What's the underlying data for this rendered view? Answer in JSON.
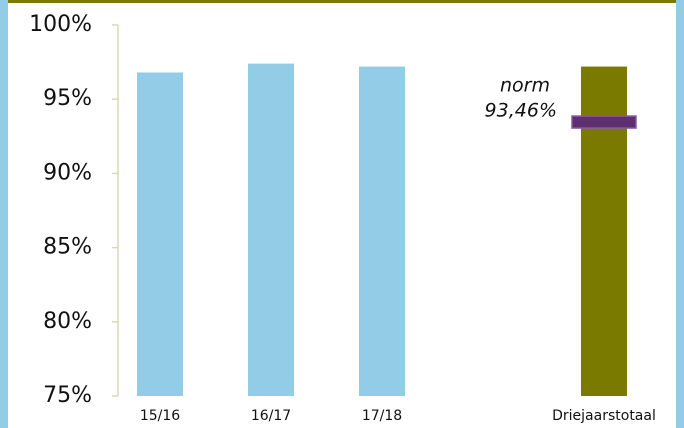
{
  "chart_data": {
    "type": "bar",
    "categories": [
      "15/16",
      "16/17",
      "17/18",
      "Driejaarstotaal"
    ],
    "values": [
      96.8,
      97.4,
      97.2,
      97.2
    ],
    "colors": [
      "#93cce6",
      "#93cce6",
      "#93cce6",
      "#7a7a00"
    ],
    "ylim": [
      75,
      100
    ],
    "yticks": [
      {
        "value": 75,
        "label": "75%"
      },
      {
        "value": 80,
        "label": "80%"
      },
      {
        "value": 85,
        "label": "85%"
      },
      {
        "value": 90,
        "label": "90%"
      },
      {
        "value": 95,
        "label": "95%"
      },
      {
        "value": 100,
        "label": "100%"
      }
    ],
    "norm": {
      "label": "norm",
      "value": 93.46,
      "value_label": "93,46%",
      "color": "#5e2f6e"
    }
  }
}
